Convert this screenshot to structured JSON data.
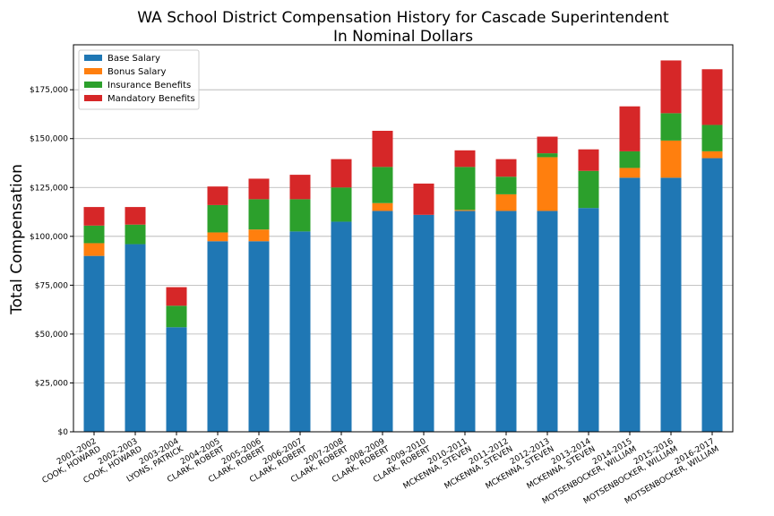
{
  "chart_data": {
    "type": "bar",
    "stacked": true,
    "title": "WA School District Compensation History for Cascade Superintendent",
    "subtitle": "In Nominal Dollars",
    "xlabel": "",
    "ylabel": "Total Compensation",
    "ylim": [
      0,
      198000
    ],
    "yticks": [
      0,
      25000,
      50000,
      75000,
      100000,
      125000,
      150000,
      175000
    ],
    "ytick_labels": [
      "$0",
      "$25,000",
      "$50,000",
      "$75,000",
      "$100,000",
      "$125,000",
      "$150,000",
      "$175,000"
    ],
    "grid": "y",
    "legend_position": "top-left",
    "categories": [
      [
        "2001-2002",
        "COOK, HOWARD"
      ],
      [
        "2002-2003",
        "COOK, HOWARD"
      ],
      [
        "2003-2004",
        "LYONS, PATRICK"
      ],
      [
        "2004-2005",
        "CLARK, ROBERT"
      ],
      [
        "2005-2006",
        "CLARK, ROBERT"
      ],
      [
        "2006-2007",
        "CLARK, ROBERT"
      ],
      [
        "2007-2008",
        "CLARK, ROBERT"
      ],
      [
        "2008-2009",
        "CLARK, ROBERT"
      ],
      [
        "2009-2010",
        "CLARK, ROBERT"
      ],
      [
        "2010-2011",
        "MCKENNA, STEVEN"
      ],
      [
        "2011-2012",
        "MCKENNA, STEVEN"
      ],
      [
        "2012-2013",
        "MCKENNA, STEVEN"
      ],
      [
        "2013-2014",
        "MCKENNA, STEVEN"
      ],
      [
        "2014-2015",
        "MOTSENBOCKER, WILLIAM"
      ],
      [
        "2015-2016",
        "MOTSENBOCKER, WILLIAM"
      ],
      [
        "2016-2017",
        "MOTSENBOCKER, WILLIAM"
      ]
    ],
    "series": [
      {
        "name": "Base Salary",
        "color": "#1f77b4",
        "values": [
          90000,
          96000,
          53500,
          97500,
          97500,
          102500,
          107500,
          113000,
          111000,
          113000,
          113000,
          113000,
          114500,
          130000,
          130000,
          140000
        ]
      },
      {
        "name": "Bonus Salary",
        "color": "#ff7f0e",
        "values": [
          6500,
          0,
          0,
          4500,
          6000,
          0,
          0,
          4000,
          0,
          500,
          8500,
          27500,
          0,
          5000,
          19000,
          3500
        ]
      },
      {
        "name": "Insurance Benefits",
        "color": "#2ca02c",
        "values": [
          9000,
          10000,
          11000,
          14000,
          15500,
          16500,
          17500,
          18500,
          0,
          22000,
          9000,
          2000,
          19000,
          8500,
          14000,
          13500
        ]
      },
      {
        "name": "Mandatory Benefits",
        "color": "#d62728",
        "values": [
          9500,
          9000,
          9500,
          9500,
          10500,
          12500,
          14500,
          18500,
          16000,
          8500,
          9000,
          8500,
          11000,
          23000,
          27000,
          28500
        ]
      }
    ]
  }
}
